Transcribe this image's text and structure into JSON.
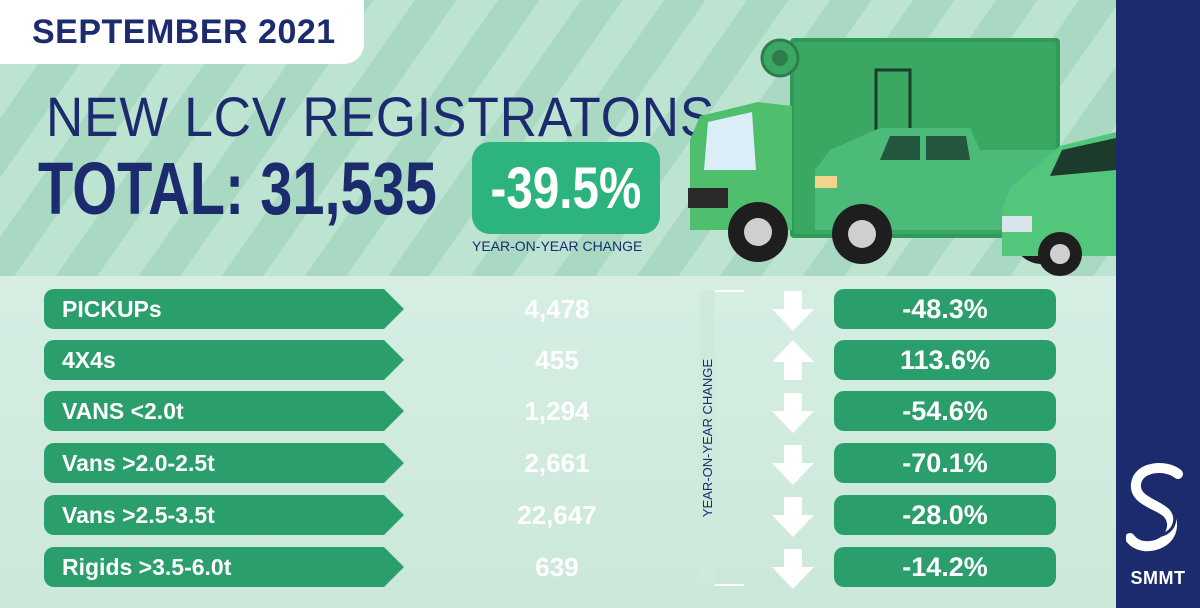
{
  "header": {
    "date": "SEPTEMBER 2021",
    "title": "NEW LCV REGISTRATONS",
    "total": "TOTAL: 31,535",
    "change": "-39.5%",
    "change_caption": "YEAR-ON-YEAR CHANGE"
  },
  "table": {
    "side_label": "YEAR-ON-YEAR CHANGE",
    "rows": [
      {
        "category": "PICKUPs",
        "value": "4,478",
        "change": "-48.3%",
        "direction": "down"
      },
      {
        "category": "4X4s",
        "value": "455",
        "change": "113.6%",
        "direction": "up"
      },
      {
        "category": "VANS <2.0t",
        "value": "1,294",
        "change": "-54.6%",
        "direction": "down"
      },
      {
        "category": "Vans >2.0-2.5t",
        "value": "2,661",
        "change": "-70.1%",
        "direction": "down"
      },
      {
        "category": "Vans >2.5-3.5t",
        "value": "22,647",
        "change": "-28.0%",
        "direction": "down"
      },
      {
        "category": "Rigids >3.5-6.0t",
        "value": "639",
        "change": "-14.2%",
        "direction": "down"
      }
    ]
  },
  "brand": {
    "name": "SMMT"
  },
  "colors": {
    "navy": "#1c2b6e",
    "green": "#2a9f6c",
    "light_green": "#88cfae",
    "accent_green": "#2db47e"
  },
  "icons": {
    "down": "arrow-down-icon",
    "up": "arrow-up-icon",
    "logo": "smmt-logo-icon",
    "vehicles": "vehicles-illustration"
  }
}
